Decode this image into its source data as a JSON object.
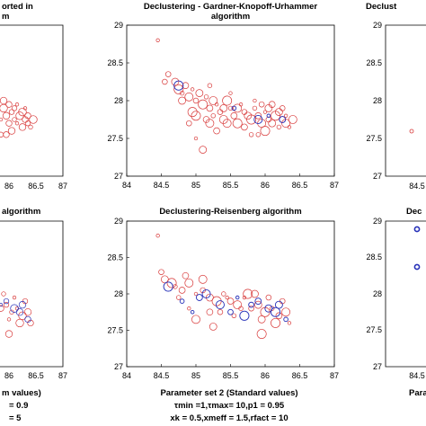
{
  "colors": {
    "red": "#d83a3a",
    "blue": "#2630b8",
    "axis": "#000000"
  },
  "panels": {
    "top_left": {
      "title_lines": [
        "orted in",
        "m"
      ],
      "xticks": [
        "86",
        "86.5",
        "87"
      ]
    },
    "top_right": {
      "title_lines": [
        "Declust"
      ],
      "yticks": [
        "29",
        "28.5",
        "28",
        "27.5",
        "27"
      ],
      "xticks": [
        "84.5"
      ]
    },
    "bottom_left": {
      "title_lines": [
        "algorithm"
      ],
      "xticks": [
        "86",
        "86.5",
        "87"
      ]
    },
    "bottom_right": {
      "title_lines": [
        "Dec"
      ],
      "yticks": [
        "29",
        "28.5",
        "28",
        "27.5",
        "27"
      ],
      "xticks": [
        "84.5"
      ]
    }
  },
  "bottom_text": {
    "left": [
      "m values)",
      "= 0.9",
      "= 5"
    ],
    "center": [
      "Parameter set 2 (Standard values)",
      "τmin =1,τmax= 10,p1 = 0.95",
      "xk = 0.5,xmeff = 1.5,rfact = 10"
    ],
    "right": [
      "Para"
    ]
  },
  "chart_data": [
    {
      "type": "scatter",
      "title": "Declustering - Gardner-Knopoff-Urhammer algorithm",
      "title_lines": [
        "Declustering - Gardner-Knopoff-Urhammer",
        "algorithm"
      ],
      "xlim": [
        84,
        87
      ],
      "ylim": [
        27,
        29
      ],
      "xticks": [
        84,
        84.5,
        85,
        85.5,
        86,
        86.5,
        87
      ],
      "xtick_labels": [
        "84",
        "84.5",
        "85",
        "85.5",
        "86",
        "86.5",
        "87"
      ],
      "yticks": [
        27,
        27.5,
        28,
        28.5,
        29
      ],
      "ytick_labels": [
        "27",
        "27.5",
        "28",
        "28.5",
        "29"
      ],
      "xlabel": "",
      "ylabel": "",
      "series": [
        {
          "color": "red",
          "points": [
            [
              84.45,
              28.8
            ],
            [
              84.55,
              28.25
            ],
            [
              84.7,
              28.25
            ],
            [
              84.75,
              28.15
            ],
            [
              84.8,
              28.1
            ],
            [
              84.85,
              28.2
            ],
            [
              84.9,
              28.05
            ],
            [
              84.95,
              28.15
            ],
            [
              85.0,
              28.0
            ],
            [
              85.05,
              28.1
            ],
            [
              85.1,
              27.95
            ],
            [
              85.15,
              28.05
            ],
            [
              85.2,
              27.9
            ],
            [
              85.25,
              28.0
            ],
            [
              85.3,
              27.95
            ],
            [
              85.35,
              27.85
            ],
            [
              85.4,
              27.9
            ],
            [
              85.45,
              28.0
            ],
            [
              85.5,
              27.9
            ],
            [
              85.55,
              27.8
            ],
            [
              85.6,
              27.9
            ],
            [
              85.65,
              27.95
            ],
            [
              85.7,
              27.85
            ],
            [
              85.75,
              27.8
            ],
            [
              85.8,
              27.75
            ],
            [
              85.85,
              27.9
            ],
            [
              85.9,
              27.8
            ],
            [
              85.95,
              27.7
            ],
            [
              86.0,
              27.85
            ],
            [
              86.05,
              27.75
            ],
            [
              86.1,
              27.7
            ],
            [
              86.15,
              27.8
            ],
            [
              86.2,
              27.65
            ],
            [
              86.25,
              27.75
            ],
            [
              86.3,
              27.7
            ],
            [
              86.35,
              27.65
            ],
            [
              86.25,
              27.9
            ],
            [
              86.2,
              27.85
            ],
            [
              86.0,
              27.6
            ],
            [
              85.9,
              27.55
            ],
            [
              85.3,
              27.6
            ],
            [
              85.2,
              27.7
            ],
            [
              85.0,
              27.5
            ],
            [
              84.9,
              27.7
            ],
            [
              85.1,
              27.35
            ],
            [
              85.6,
              27.7
            ],
            [
              85.8,
              27.55
            ],
            [
              85.7,
              27.65
            ],
            [
              85.4,
              27.75
            ],
            [
              85.5,
              28.1
            ],
            [
              84.6,
              28.35
            ],
            [
              84.8,
              28.0
            ],
            [
              85.0,
              27.8
            ],
            [
              85.2,
              28.2
            ],
            [
              86.1,
              27.95
            ],
            [
              86.4,
              27.75
            ],
            [
              85.85,
              28.0
            ],
            [
              85.95,
              27.95
            ],
            [
              86.05,
              27.9
            ],
            [
              84.95,
              27.85
            ],
            [
              85.25,
              27.8
            ],
            [
              85.15,
              27.75
            ],
            [
              85.45,
              27.7
            ],
            [
              86.3,
              27.8
            ]
          ]
        },
        {
          "color": "blue",
          "points": [
            [
              84.75,
              28.2
            ],
            [
              85.55,
              27.9
            ],
            [
              86.25,
              27.75
            ],
            [
              85.9,
              27.75
            ],
            [
              86.05,
              27.8
            ]
          ]
        }
      ]
    },
    {
      "type": "scatter",
      "title": "Declustering-Reisenberg algorithm",
      "title_lines": [
        "Declustering-Reisenberg algorithm"
      ],
      "xlim": [
        84,
        87
      ],
      "ylim": [
        27,
        29
      ],
      "xticks": [
        84,
        84.5,
        85,
        85.5,
        86,
        86.5,
        87
      ],
      "xtick_labels": [
        "84",
        "84.5",
        "85",
        "85.5",
        "86",
        "86.5",
        "87"
      ],
      "yticks": [
        27,
        27.5,
        28,
        28.5,
        29
      ],
      "ytick_labels": [
        "27",
        "27.5",
        "28",
        "28.5",
        "29"
      ],
      "xlabel": "",
      "ylabel": "",
      "series": [
        {
          "color": "red",
          "points": [
            [
              84.45,
              28.8
            ],
            [
              84.5,
              28.3
            ],
            [
              84.55,
              28.2
            ],
            [
              84.65,
              28.15
            ],
            [
              84.7,
              28.1
            ],
            [
              84.8,
              28.05
            ],
            [
              84.9,
              28.15
            ],
            [
              85.0,
              28.0
            ],
            [
              85.1,
              28.05
            ],
            [
              85.2,
              27.95
            ],
            [
              85.3,
              27.9
            ],
            [
              85.4,
              28.0
            ],
            [
              85.5,
              27.9
            ],
            [
              85.6,
              27.85
            ],
            [
              85.7,
              27.95
            ],
            [
              85.8,
              27.8
            ],
            [
              85.9,
              27.85
            ],
            [
              86.0,
              27.75
            ],
            [
              86.1,
              27.8
            ],
            [
              86.2,
              27.7
            ],
            [
              86.3,
              27.75
            ],
            [
              86.35,
              27.6
            ],
            [
              86.25,
              27.9
            ],
            [
              85.85,
              28.0
            ],
            [
              85.75,
              28.0
            ],
            [
              85.55,
              27.7
            ],
            [
              85.2,
              27.75
            ],
            [
              85.0,
              27.65
            ],
            [
              84.9,
              27.8
            ],
            [
              85.35,
              27.75
            ],
            [
              85.95,
              27.65
            ],
            [
              86.15,
              27.6
            ],
            [
              85.65,
              27.8
            ],
            [
              84.85,
              28.25
            ],
            [
              85.1,
              28.2
            ],
            [
              85.45,
              27.95
            ],
            [
              86.05,
              27.95
            ],
            [
              85.25,
              27.55
            ],
            [
              85.95,
              27.45
            ],
            [
              84.75,
              27.95
            ]
          ]
        },
        {
          "color": "blue",
          "points": [
            [
              84.6,
              28.1
            ],
            [
              84.8,
              27.9
            ],
            [
              85.05,
              27.95
            ],
            [
              85.35,
              27.85
            ],
            [
              85.6,
              27.95
            ],
            [
              85.8,
              27.85
            ],
            [
              86.05,
              27.8
            ],
            [
              86.15,
              27.75
            ],
            [
              86.3,
              27.65
            ],
            [
              85.9,
              27.9
            ],
            [
              85.15,
              28.0
            ],
            [
              84.95,
              27.75
            ],
            [
              85.5,
              27.75
            ],
            [
              86.2,
              27.85
            ],
            [
              85.7,
              27.7
            ]
          ]
        }
      ]
    }
  ]
}
